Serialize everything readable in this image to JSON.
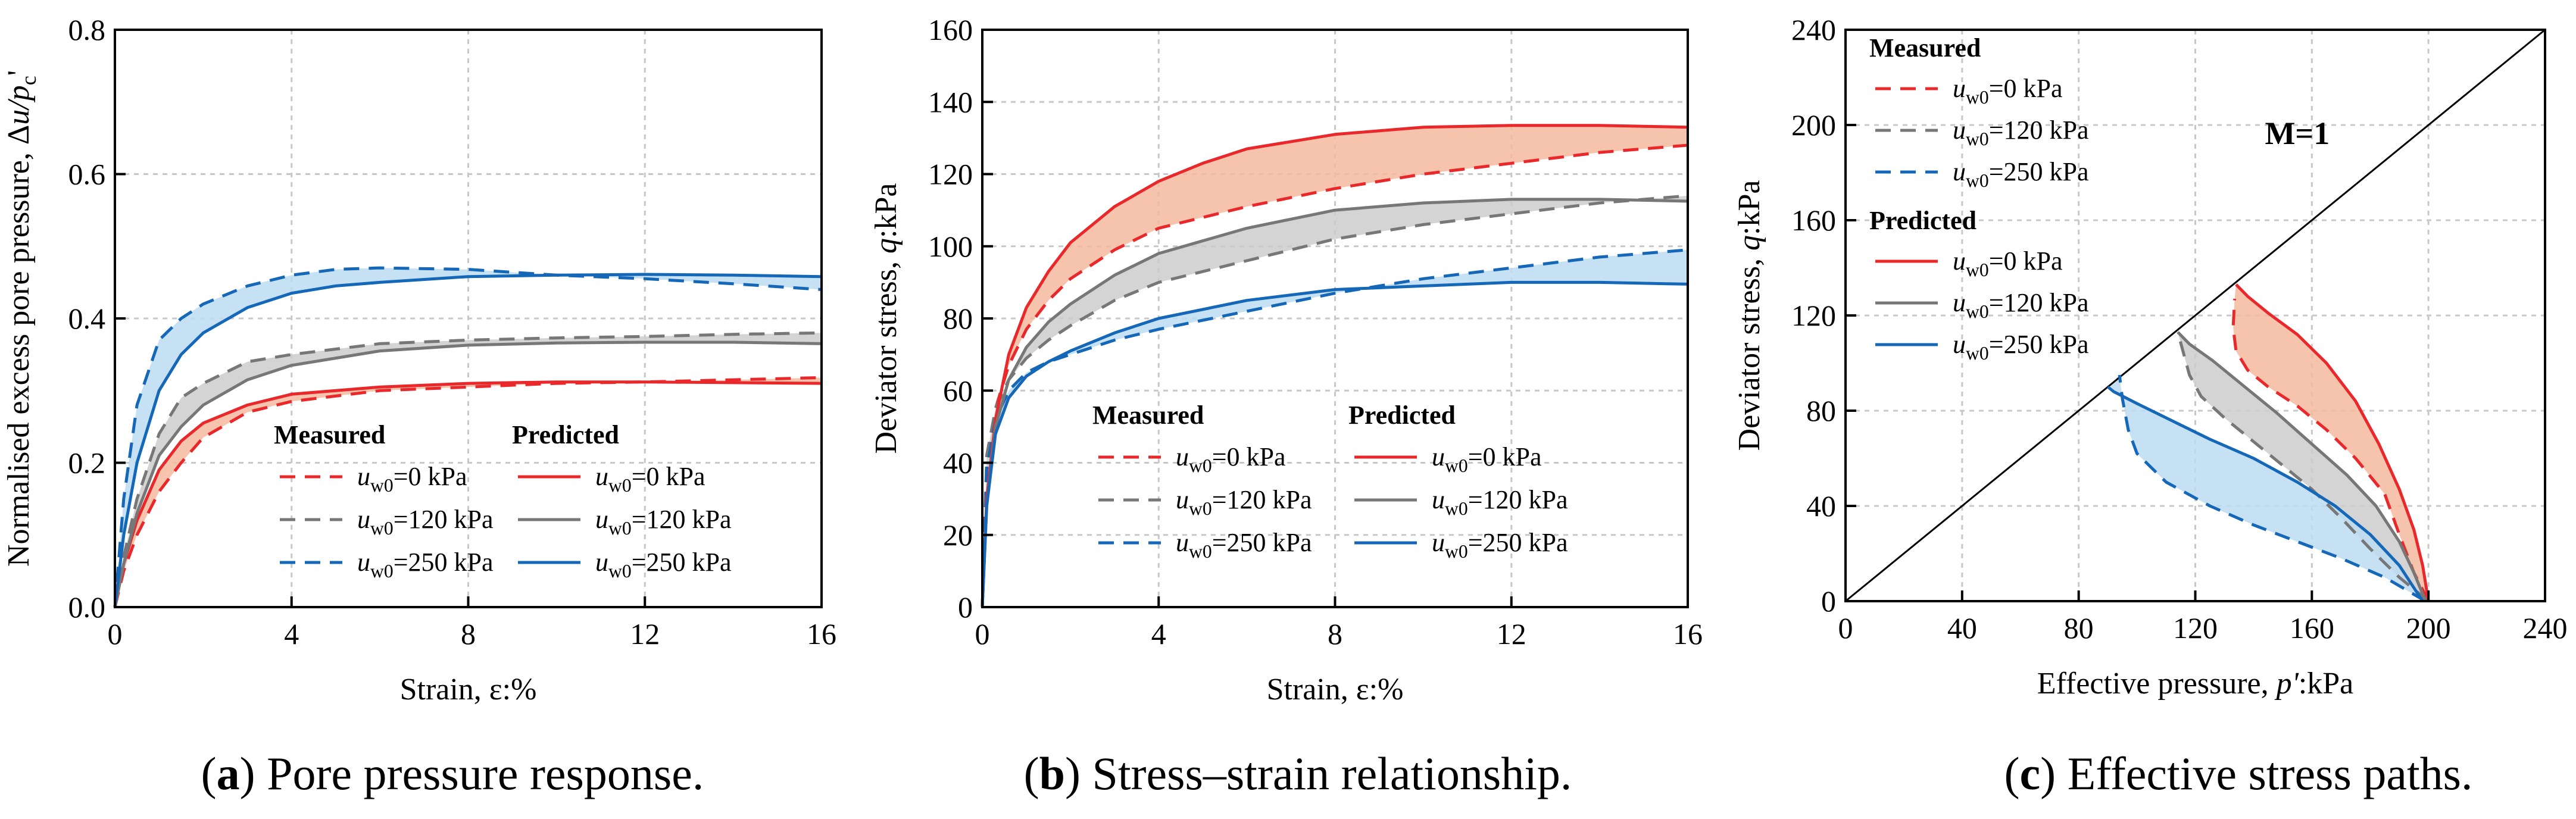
{
  "chart_data": [
    {
      "type": "line",
      "panel": "a",
      "caption_letter": "a",
      "caption_text": "Pore pressure response.",
      "xlabel": "Strain, ε:%",
      "ylabel": "Normalised excess pore pressure, Δu/p_c'",
      "xlim": [
        0,
        16
      ],
      "ylim": [
        0,
        0.8
      ],
      "xticks": [
        0,
        4,
        8,
        12,
        16
      ],
      "yticks": [
        0.0,
        0.2,
        0.4,
        0.6,
        0.8
      ],
      "ytick_labels": [
        "0.0",
        "0.2",
        "0.4",
        "0.6",
        "0.8"
      ],
      "grid": true,
      "legend": {
        "position": "bottom-right",
        "measured_title": "Measured",
        "predicted_title": "Predicted",
        "entries": [
          "u_w0=0 kPa",
          "u_w0=120 kPa",
          "u_w0=250 kPa"
        ]
      },
      "series": [
        {
          "name": "Measured u_w0=0 kPa",
          "group": "measured",
          "color": "#e8282b",
          "dashed": true,
          "x": [
            0,
            0.2,
            0.5,
            1,
            1.5,
            2,
            3,
            4,
            6,
            8,
            10,
            12,
            14,
            16
          ],
          "y": [
            0,
            0.05,
            0.1,
            0.16,
            0.2,
            0.235,
            0.27,
            0.285,
            0.3,
            0.305,
            0.31,
            0.312,
            0.315,
            0.318
          ]
        },
        {
          "name": "Measured u_w0=120 kPa",
          "group": "measured",
          "color": "#777777",
          "dashed": true,
          "x": [
            0,
            0.2,
            0.5,
            1,
            1.5,
            2,
            3,
            4,
            6,
            8,
            10,
            12,
            14,
            16
          ],
          "y": [
            0,
            0.07,
            0.15,
            0.24,
            0.29,
            0.31,
            0.34,
            0.35,
            0.365,
            0.37,
            0.373,
            0.375,
            0.378,
            0.38
          ]
        },
        {
          "name": "Measured u_w0=250 kPa",
          "group": "measured",
          "color": "#1567b8",
          "dashed": true,
          "x": [
            0,
            0.2,
            0.5,
            1,
            1.5,
            2,
            3,
            4,
            5,
            6,
            8,
            10,
            12,
            14,
            16
          ],
          "y": [
            0,
            0.15,
            0.28,
            0.37,
            0.4,
            0.42,
            0.445,
            0.46,
            0.468,
            0.47,
            0.468,
            0.46,
            0.455,
            0.448,
            0.44
          ]
        },
        {
          "name": "Predicted u_w0=0 kPa",
          "group": "predicted",
          "color": "#e8282b",
          "dashed": false,
          "x": [
            0,
            0.2,
            0.5,
            1,
            1.5,
            2,
            3,
            4,
            6,
            8,
            10,
            12,
            14,
            16
          ],
          "y": [
            0,
            0.06,
            0.12,
            0.19,
            0.23,
            0.255,
            0.28,
            0.295,
            0.305,
            0.31,
            0.312,
            0.312,
            0.311,
            0.31
          ]
        },
        {
          "name": "Predicted u_w0=120 kPa",
          "group": "predicted",
          "color": "#777777",
          "dashed": false,
          "x": [
            0,
            0.2,
            0.5,
            1,
            1.5,
            2,
            3,
            4,
            6,
            8,
            10,
            12,
            14,
            16
          ],
          "y": [
            0,
            0.06,
            0.13,
            0.21,
            0.25,
            0.28,
            0.315,
            0.335,
            0.355,
            0.363,
            0.366,
            0.367,
            0.367,
            0.365
          ]
        },
        {
          "name": "Predicted u_w0=250 kPa",
          "group": "predicted",
          "color": "#1567b8",
          "dashed": false,
          "x": [
            0,
            0.2,
            0.5,
            1,
            1.5,
            2,
            3,
            4,
            5,
            6,
            8,
            10,
            12,
            14,
            16
          ],
          "y": [
            0,
            0.1,
            0.2,
            0.3,
            0.35,
            0.38,
            0.415,
            0.435,
            0.445,
            0.45,
            0.458,
            0.46,
            0.461,
            0.46,
            0.458
          ]
        }
      ],
      "bands": [
        {
          "between": [
            0,
            3
          ],
          "color": "#f5b89e"
        },
        {
          "between": [
            1,
            4
          ],
          "color": "#cccccc"
        },
        {
          "between": [
            2,
            5
          ],
          "color": "#bcdcf1"
        }
      ]
    },
    {
      "type": "line",
      "panel": "b",
      "caption_letter": "b",
      "caption_text": "Stress–strain relationship.",
      "xlabel": "Strain, ε:%",
      "ylabel": "Deviator stress, q:kPa",
      "xlim": [
        0,
        16
      ],
      "ylim": [
        0,
        160
      ],
      "xticks": [
        0,
        4,
        8,
        12,
        16
      ],
      "yticks": [
        0,
        20,
        40,
        60,
        80,
        100,
        120,
        140,
        160
      ],
      "ytick_labels": [
        "0",
        "20",
        "40",
        "60",
        "80",
        "100",
        "120",
        "140",
        "160"
      ],
      "grid": true,
      "legend": {
        "position": "bottom-right",
        "measured_title": "Measured",
        "predicted_title": "Predicted",
        "entries": [
          "u_w0=0 kPa",
          "u_w0=120 kPa",
          "u_w0=250 kPa"
        ]
      },
      "series": [
        {
          "name": "Measured u_w0=0 kPa",
          "group": "measured",
          "color": "#e8282b",
          "dashed": true,
          "x": [
            0,
            0.1,
            0.3,
            0.6,
            1,
            1.5,
            2,
            3,
            4,
            6,
            8,
            10,
            12,
            14,
            16
          ],
          "y": [
            0,
            38,
            55,
            67,
            77,
            85,
            91,
            99,
            105,
            111,
            116,
            120,
            123,
            126,
            128
          ]
        },
        {
          "name": "Measured u_w0=120 kPa",
          "group": "measured",
          "color": "#777777",
          "dashed": true,
          "x": [
            0,
            0.1,
            0.3,
            0.6,
            1,
            1.5,
            2,
            3,
            4,
            6,
            8,
            10,
            12,
            14,
            16
          ],
          "y": [
            0,
            42,
            55,
            63,
            69,
            74,
            78,
            85,
            90,
            96,
            102,
            106,
            109,
            112,
            114
          ]
        },
        {
          "name": "Measured u_w0=250 kPa",
          "group": "measured",
          "color": "#1567b8",
          "dashed": true,
          "x": [
            0,
            0.1,
            0.3,
            0.6,
            1,
            1.5,
            2,
            3,
            4,
            6,
            8,
            10,
            12,
            14,
            16
          ],
          "y": [
            0,
            38,
            52,
            60,
            65,
            68,
            70,
            74,
            77,
            82,
            87,
            91,
            94,
            97,
            99
          ]
        },
        {
          "name": "Predicted u_w0=0 kPa",
          "group": "predicted",
          "color": "#e8282b",
          "dashed": false,
          "x": [
            0,
            0.1,
            0.3,
            0.6,
            1,
            1.5,
            2,
            3,
            4,
            5,
            6,
            8,
            10,
            12,
            14,
            16
          ],
          "y": [
            0,
            30,
            52,
            70,
            83,
            93,
            101,
            111,
            118,
            123,
            127,
            131,
            133,
            133.5,
            133.5,
            133
          ]
        },
        {
          "name": "Predicted u_w0=120 kPa",
          "group": "predicted",
          "color": "#777777",
          "dashed": false,
          "x": [
            0,
            0.1,
            0.3,
            0.6,
            1,
            1.5,
            2,
            3,
            4,
            6,
            8,
            10,
            12,
            14,
            16
          ],
          "y": [
            0,
            28,
            50,
            63,
            72,
            79,
            84,
            92,
            98,
            105,
            110,
            112,
            113,
            113,
            112.5
          ]
        },
        {
          "name": "Predicted u_w0=250 kPa",
          "group": "predicted",
          "color": "#1567b8",
          "dashed": false,
          "x": [
            0,
            0.1,
            0.3,
            0.6,
            1,
            1.5,
            2,
            3,
            4,
            6,
            8,
            10,
            12,
            14,
            16
          ],
          "y": [
            0,
            28,
            48,
            58,
            64,
            68,
            71,
            76,
            80,
            85,
            88,
            89,
            90,
            90,
            89.5
          ]
        }
      ],
      "bands": [
        {
          "between": [
            0,
            3
          ],
          "color": "#f5b89e"
        },
        {
          "between": [
            1,
            4
          ],
          "color": "#cccccc"
        },
        {
          "between": [
            2,
            5
          ],
          "color": "#bcdcf1"
        }
      ]
    },
    {
      "type": "line",
      "panel": "c",
      "caption_letter": "c",
      "caption_text": "Effective stress paths.",
      "xlabel": "Effective pressure, p':kPa",
      "ylabel": "Deviator stress, q:kPa",
      "xlim": [
        0,
        240
      ],
      "ylim": [
        0,
        240
      ],
      "xticks": [
        0,
        40,
        80,
        120,
        160,
        200,
        240
      ],
      "yticks": [
        0,
        40,
        80,
        120,
        160,
        200,
        240
      ],
      "ytick_labels": [
        "0",
        "40",
        "80",
        "120",
        "160",
        "200",
        "240"
      ],
      "grid": true,
      "annotation": "M=1",
      "critical_state_line": {
        "slope": 1,
        "color": "#000000"
      },
      "legend": {
        "position": "top-left",
        "measured_title": "Measured",
        "predicted_title": "Predicted",
        "entries": [
          "u_w0=0 kPa",
          "u_w0=120 kPa",
          "u_w0=250 kPa"
        ]
      },
      "series": [
        {
          "name": "Measured u_w0=0 kPa",
          "group": "measured",
          "color": "#e8282b",
          "dashed": true,
          "x": [
            200,
            195,
            190,
            185,
            175,
            165,
            155,
            145,
            138,
            134,
            133,
            133.5
          ],
          "y": [
            0,
            12,
            28,
            45,
            60,
            72,
            82,
            90,
            97,
            105,
            115,
            127
          ]
        },
        {
          "name": "Measured u_w0=120 kPa",
          "group": "measured",
          "color": "#777777",
          "dashed": true,
          "x": [
            200,
            190,
            180,
            170,
            160,
            150,
            140,
            130,
            122,
            118,
            116,
            114
          ],
          "y": [
            0,
            10,
            22,
            35,
            47,
            57,
            67,
            77,
            86,
            95,
            104,
            113
          ]
        },
        {
          "name": "Measured u_w0=250 kPa",
          "group": "measured",
          "color": "#1567b8",
          "dashed": true,
          "x": [
            199,
            185,
            170,
            155,
            140,
            125,
            110,
            100,
            97,
            95,
            94
          ],
          "y": [
            0,
            10,
            18,
            25,
            32,
            40,
            50,
            62,
            72,
            85,
            95
          ]
        },
        {
          "name": "Predicted u_w0=0 kPa",
          "group": "predicted",
          "color": "#e8282b",
          "dashed": false,
          "x": [
            200,
            198,
            195,
            190,
            183,
            175,
            165,
            155,
            145,
            138,
            134
          ],
          "y": [
            0,
            15,
            30,
            47,
            66,
            84,
            100,
            112,
            121,
            128,
            133
          ]
        },
        {
          "name": "Predicted u_w0=120 kPa",
          "group": "predicted",
          "color": "#777777",
          "dashed": false,
          "x": [
            199,
            195,
            190,
            182,
            172,
            160,
            148,
            136,
            126,
            118,
            114
          ],
          "y": [
            0,
            12,
            25,
            40,
            53,
            66,
            79,
            91,
            101,
            108,
            113
          ]
        },
        {
          "name": "Predicted u_w0=250 kPa",
          "group": "predicted",
          "color": "#1567b8",
          "dashed": false,
          "x": [
            198,
            190,
            180,
            168,
            155,
            140,
            125,
            110,
            100,
            92,
            90
          ],
          "y": [
            0,
            15,
            28,
            40,
            50,
            60,
            68,
            77,
            83,
            88,
            90
          ]
        }
      ],
      "bands": [
        {
          "between": [
            0,
            3
          ],
          "color": "#f5b89e"
        },
        {
          "between": [
            1,
            4
          ],
          "color": "#cccccc"
        },
        {
          "between": [
            2,
            5
          ],
          "color": "#bcdcf1"
        }
      ]
    }
  ]
}
